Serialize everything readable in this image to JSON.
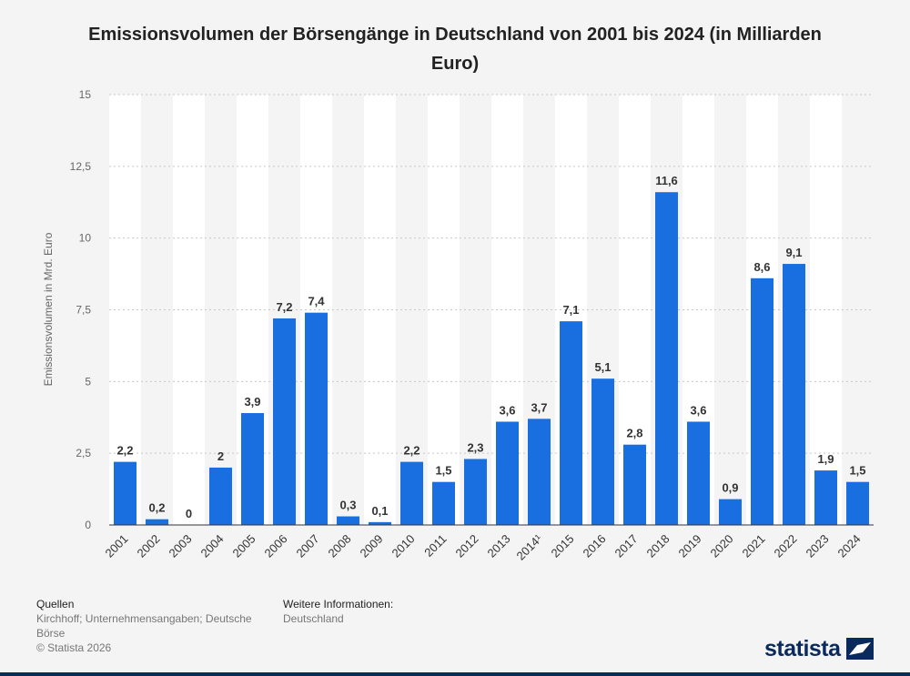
{
  "chart_data": {
    "type": "bar",
    "title": "Emissionsvolumen der Börsengänge in Deutschland von 2001 bis 2024 (in Milliarden Euro)",
    "xlabel": "",
    "ylabel": "Emissionsvolumen in Mrd. Euro",
    "ylim": [
      0,
      15
    ],
    "yticks": [
      "0",
      "2,5",
      "5",
      "7,5",
      "10",
      "12,5",
      "15"
    ],
    "ytick_values": [
      0,
      2.5,
      5,
      7.5,
      10,
      12.5,
      15
    ],
    "categories": [
      "2001",
      "2002",
      "2003",
      "2004",
      "2005",
      "2006",
      "2007",
      "2008",
      "2009",
      "2010",
      "2011",
      "2012",
      "2013",
      "2014¹",
      "2015",
      "2016",
      "2017",
      "2018",
      "2019",
      "2020",
      "2021",
      "2022",
      "2023",
      "2024"
    ],
    "values": [
      2.2,
      0.2,
      0,
      2,
      3.9,
      7.2,
      7.4,
      0.3,
      0.1,
      2.2,
      1.5,
      2.3,
      3.6,
      3.7,
      7.1,
      5.1,
      2.8,
      11.6,
      3.6,
      0.9,
      8.6,
      9.1,
      1.9,
      1.5
    ],
    "labels": [
      "2,2",
      "0,2",
      "0",
      "2",
      "3,9",
      "7,2",
      "7,4",
      "0,3",
      "0,1",
      "2,2",
      "1,5",
      "2,3",
      "3,6",
      "3,7",
      "7,1",
      "5,1",
      "2,8",
      "11,6",
      "3,6",
      "0,9",
      "8,6",
      "9,1",
      "1,9",
      "1,5"
    ],
    "bar_color": "#1a6fe0",
    "grid": true
  },
  "footer": {
    "sources_heading": "Quellen",
    "sources_text": "Kirchhoff; Unternehmensangaben; Deutsche Börse",
    "copyright": "© Statista 2026",
    "info_heading": "Weitere Informationen:",
    "info_text": "Deutschland"
  },
  "brand": {
    "name": "statista",
    "color": "#0a2a5c"
  }
}
